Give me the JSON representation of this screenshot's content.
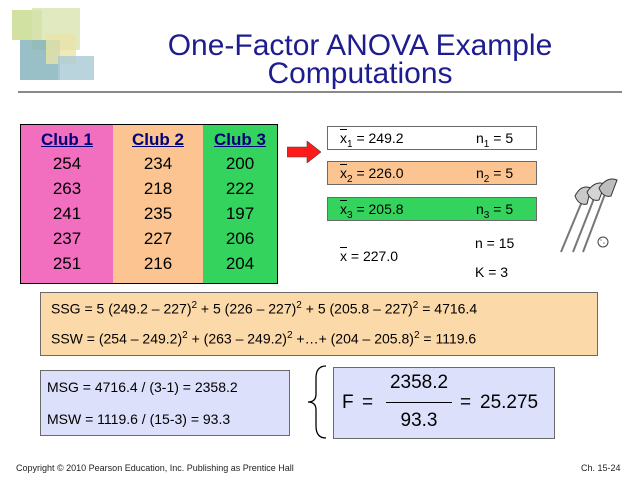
{
  "slide": {
    "title_line1": "One-Factor ANOVA Example",
    "title_line2": "Computations",
    "colors": {
      "title": "#1d1d8f",
      "club1": "#f26fc0",
      "club2": "#fbc490",
      "club3": "#33d35e"
    }
  },
  "data_table": {
    "columns": [
      {
        "header": "Club 1",
        "values": [
          "254",
          "263",
          "241",
          "237",
          "251"
        ]
      },
      {
        "header": "Club 2",
        "values": [
          "234",
          "218",
          "235",
          "227",
          "216"
        ]
      },
      {
        "header": "Club 3",
        "values": [
          "200",
          "222",
          "197",
          "206",
          "204"
        ]
      }
    ]
  },
  "means": {
    "rows": [
      {
        "label": "x",
        "sub": "1",
        "value": " = 249.2",
        "n_label": "n",
        "n_sub": "1",
        "n_value": " = 5",
        "fill": "#ffffff"
      },
      {
        "label": "x",
        "sub": "2",
        "value": " = 226.0",
        "n_label": "n",
        "n_sub": "2",
        "n_value": " = 5",
        "fill": "#fbc490"
      },
      {
        "label": "x",
        "sub": "3",
        "value": " = 205.8",
        "n_label": "n",
        "n_sub": "3",
        "n_value": " = 5",
        "fill": "#33d35e"
      }
    ],
    "grand_mean": {
      "label": "x",
      "value": " = 227.0"
    },
    "n_total": "n = 15",
    "k": "K = 3"
  },
  "ss": {
    "ssg_prefix": "SSG =  5 (249.2 – 227)",
    "ssg_mid1": " + 5 (226 – 227)",
    "ssg_mid2": " + 5 (205.8 – 227)",
    "ssg_result": "  = 4716.4",
    "ssw_prefix": "SSW =  (254 – 249.2)",
    "ssw_mid1": " + (263 – 249.2)",
    "ssw_mid2": " +…+ (204 – 205.8)",
    "ssw_result": " = 1119.6",
    "exp": "2"
  },
  "ms": {
    "msg": "MSG = 4716.4 / (3-1) = 2358.2",
    "msw": "MSW = 1119.6 / (15-3) = 93.3"
  },
  "f_stat": {
    "label": "F",
    "eq": "=",
    "numerator": "2358.2",
    "denominator": "93.3",
    "result": "25.275"
  },
  "footer": {
    "copyright": "Copyright © 2010 Pearson Education, Inc. Publishing as Prentice Hall",
    "page": "Ch. 15-24"
  },
  "icons": [
    "golf-clubs-icon",
    "red-arrow-icon",
    "curly-brace-icon"
  ]
}
